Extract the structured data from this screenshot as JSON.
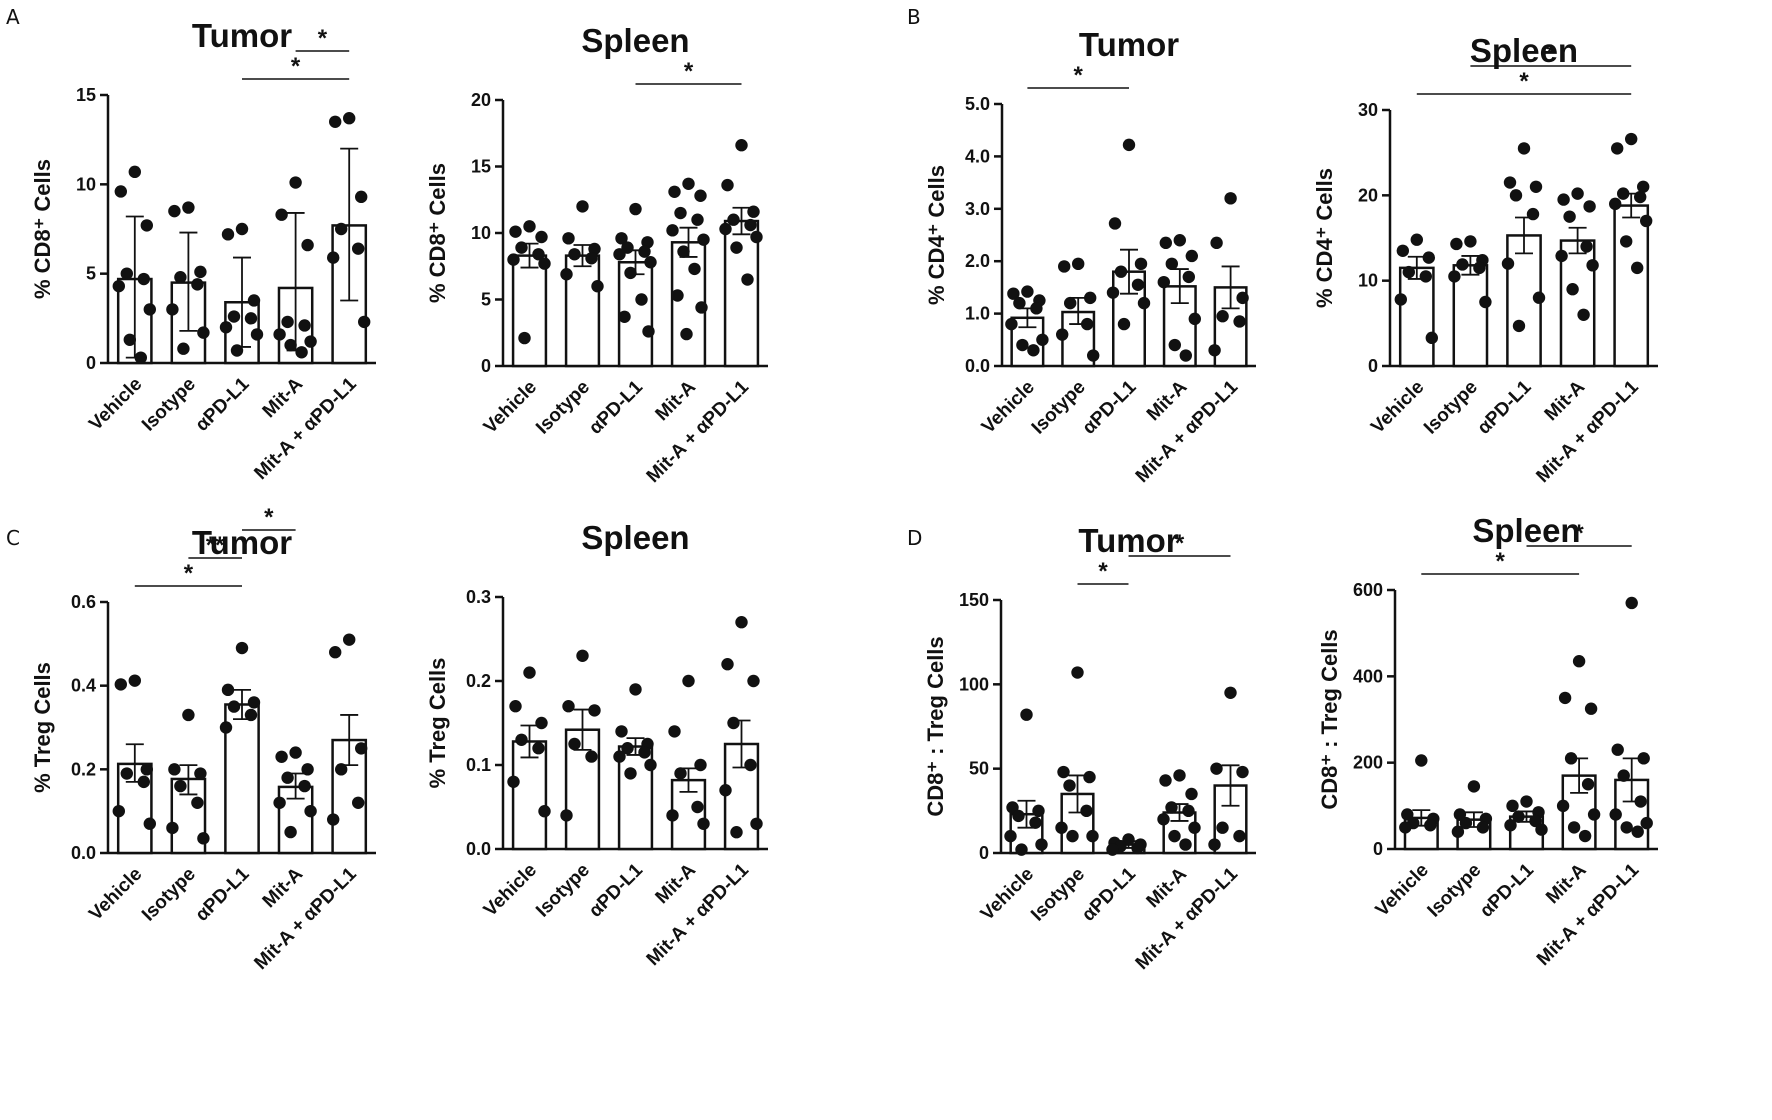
{
  "figure": {
    "panel_letters": [
      "A",
      "B",
      "C",
      "D"
    ],
    "category_labels": {
      "vehicle": "Vehicle",
      "isotype": "Isotype",
      "apdl1": "αPD-L1",
      "mita": "Mit-A",
      "combo": "Mit-A + αPD-L1"
    }
  },
  "chart_data": [
    {
      "type": "bar",
      "panel": "A",
      "title": "Tumor",
      "ylabel": "% CD8⁺ Cells",
      "ylim": [
        0,
        15
      ],
      "yticks": [
        0,
        5,
        10,
        15
      ],
      "ytick_labels": [
        "0",
        "5",
        "10",
        "15"
      ],
      "categories": [
        "Vehicle",
        "Isotype",
        "αPD-L1",
        "Mit-A",
        "Mit-A + αPD-L1"
      ],
      "values": [
        4.7,
        4.5,
        3.4,
        4.2,
        7.7
      ],
      "err_upper": [
        8.2,
        7.3,
        5.9,
        8.4,
        12.0
      ],
      "err_lower": [
        0.3,
        1.8,
        0.9,
        0.7,
        3.5
      ],
      "points": [
        [
          10.7,
          9.6,
          7.7,
          5.0,
          4.7,
          4.3,
          3.0,
          1.3,
          0.3
        ],
        [
          8.7,
          8.5,
          5.1,
          4.8,
          4.4,
          3.0,
          1.7,
          0.8
        ],
        [
          7.5,
          7.2,
          3.5,
          2.6,
          2.5,
          2.0,
          1.6,
          0.7
        ],
        [
          10.1,
          8.3,
          6.6,
          2.3,
          2.1,
          1.6,
          1.2,
          1.0,
          0.6
        ],
        [
          13.7,
          13.5,
          9.3,
          7.5,
          6.4,
          5.9,
          2.3
        ]
      ],
      "significance": [
        {
          "from": 2,
          "to": 4,
          "label": "*"
        },
        {
          "from": 3,
          "to": 4,
          "label": "*"
        }
      ]
    },
    {
      "type": "bar",
      "panel": "",
      "title": "Spleen",
      "ylabel": "% CD8⁺ Cells",
      "ylim": [
        0,
        20
      ],
      "yticks": [
        0,
        5,
        10,
        15,
        20
      ],
      "ytick_labels": [
        "0",
        "5",
        "10",
        "15",
        "20"
      ],
      "categories": [
        "Vehicle",
        "Isotype",
        "αPD-L1",
        "Mit-A",
        "Mit-A + αPD-L1"
      ],
      "values": [
        8.3,
        8.3,
        7.8,
        9.3,
        10.9
      ],
      "err_upper": [
        9.2,
        9.1,
        8.7,
        10.4,
        11.9
      ],
      "err_lower": [
        7.4,
        7.5,
        6.9,
        8.2,
        9.9
      ],
      "points": [
        [
          10.5,
          10.1,
          9.7,
          8.9,
          8.4,
          8.0,
          7.7,
          2.1
        ],
        [
          12.0,
          9.6,
          8.8,
          8.4,
          8.1,
          6.9,
          6.0
        ],
        [
          11.8,
          9.6,
          9.3,
          8.9,
          8.6,
          8.4,
          7.8,
          7.0,
          5.0,
          3.7,
          2.6
        ],
        [
          13.7,
          13.1,
          12.8,
          11.5,
          11.0,
          10.2,
          9.5,
          8.6,
          7.3,
          5.3,
          4.4,
          2.4
        ],
        [
          16.6,
          13.6,
          11.6,
          11.0,
          10.6,
          10.3,
          9.7,
          8.9,
          6.5
        ]
      ],
      "significance": [
        {
          "from": 2,
          "to": 4,
          "label": "*"
        }
      ]
    },
    {
      "type": "bar",
      "panel": "B",
      "title": "Tumor",
      "ylabel": "% CD4⁺ Cells",
      "ylim": [
        0,
        5
      ],
      "yticks": [
        0,
        1,
        2,
        3,
        4,
        5
      ],
      "ytick_labels": [
        "0.0",
        "1.0",
        "2.0",
        "3.0",
        "4.0",
        "5.0"
      ],
      "categories": [
        "Vehicle",
        "Isotype",
        "αPD-L1",
        "Mit-A",
        "Mit-A + αPD-L1"
      ],
      "values": [
        0.92,
        1.03,
        1.8,
        1.52,
        1.5
      ],
      "err_upper": [
        1.1,
        1.3,
        2.22,
        1.85,
        1.9
      ],
      "err_lower": [
        0.74,
        0.8,
        1.38,
        1.2,
        1.1
      ],
      "points": [
        [
          1.42,
          1.38,
          1.25,
          1.2,
          1.1,
          0.8,
          0.5,
          0.4,
          0.3
        ],
        [
          1.95,
          1.9,
          1.3,
          1.2,
          0.8,
          0.6,
          0.2
        ],
        [
          4.22,
          2.72,
          1.95,
          1.8,
          1.55,
          1.4,
          1.2,
          0.8
        ],
        [
          2.4,
          2.35,
          2.1,
          1.95,
          1.7,
          1.6,
          0.9,
          0.4,
          0.2
        ],
        [
          3.2,
          2.35,
          1.3,
          0.95,
          0.85,
          0.3
        ]
      ],
      "significance": [
        {
          "from": 0,
          "to": 2,
          "label": "*"
        }
      ]
    },
    {
      "type": "bar",
      "panel": "",
      "title": "Spleen",
      "ylabel": "% CD4⁺ Cells",
      "ylim": [
        0,
        30
      ],
      "yticks": [
        0,
        10,
        20,
        30
      ],
      "ytick_labels": [
        "0",
        "10",
        "20",
        "30"
      ],
      "categories": [
        "Vehicle",
        "Isotype",
        "αPD-L1",
        "Mit-A",
        "Mit-A + αPD-L1"
      ],
      "values": [
        11.5,
        11.8,
        15.3,
        14.7,
        18.8
      ],
      "err_upper": [
        12.8,
        12.9,
        17.4,
        16.2,
        20.2
      ],
      "err_lower": [
        10.2,
        10.7,
        13.2,
        13.2,
        17.4
      ],
      "points": [
        [
          14.8,
          13.5,
          12.7,
          11.0,
          10.5,
          7.8,
          3.3
        ],
        [
          14.6,
          14.3,
          12.4,
          11.9,
          11.5,
          10.5,
          7.5
        ],
        [
          25.5,
          21.5,
          21.0,
          20.0,
          17.8,
          12.0,
          8.0,
          4.7
        ],
        [
          20.2,
          19.5,
          18.7,
          17.5,
          14.0,
          12.9,
          11.8,
          9.0,
          6.0
        ],
        [
          26.6,
          25.5,
          21.0,
          20.2,
          19.8,
          19.0,
          17.0,
          14.6,
          11.5
        ]
      ],
      "significance": [
        {
          "from": 0,
          "to": 4,
          "label": "*"
        },
        {
          "from": 1,
          "to": 4,
          "label": "*"
        }
      ]
    },
    {
      "type": "bar",
      "panel": "C",
      "title": "Tumor",
      "ylabel": "% Treg Cells",
      "ylim": [
        0,
        0.6
      ],
      "yticks": [
        0,
        0.2,
        0.4,
        0.6
      ],
      "ytick_labels": [
        "0.0",
        "0.2",
        "0.4",
        "0.6"
      ],
      "categories": [
        "Vehicle",
        "Isotype",
        "αPD-L1",
        "Mit-A",
        "Mit-A + αPD-L1"
      ],
      "values": [
        0.213,
        0.177,
        0.355,
        0.158,
        0.27
      ],
      "err_upper": [
        0.26,
        0.21,
        0.39,
        0.19,
        0.33
      ],
      "err_lower": [
        0.17,
        0.14,
        0.32,
        0.13,
        0.21
      ],
      "points": [
        [
          0.412,
          0.403,
          0.2,
          0.19,
          0.17,
          0.1,
          0.07
        ],
        [
          0.33,
          0.2,
          0.19,
          0.16,
          0.12,
          0.06,
          0.035
        ],
        [
          0.49,
          0.39,
          0.36,
          0.35,
          0.33,
          0.3
        ],
        [
          0.24,
          0.23,
          0.2,
          0.18,
          0.16,
          0.12,
          0.1,
          0.05
        ],
        [
          0.51,
          0.48,
          0.25,
          0.2,
          0.12,
          0.08
        ]
      ],
      "significance": [
        {
          "from": 0,
          "to": 2,
          "label": "*"
        },
        {
          "from": 1,
          "to": 2,
          "label": "**"
        },
        {
          "from": 2,
          "to": 3,
          "label": "*"
        }
      ]
    },
    {
      "type": "bar",
      "panel": "",
      "title": "Spleen",
      "ylabel": "% Treg Cells",
      "ylim": [
        0,
        0.3
      ],
      "yticks": [
        0,
        0.1,
        0.2,
        0.3
      ],
      "ytick_labels": [
        "0.0",
        "0.1",
        "0.2",
        "0.3"
      ],
      "categories": [
        "Vehicle",
        "Isotype",
        "αPD-L1",
        "Mit-A",
        "Mit-A + αPD-L1"
      ],
      "values": [
        0.128,
        0.142,
        0.122,
        0.082,
        0.125
      ],
      "err_upper": [
        0.147,
        0.166,
        0.132,
        0.096,
        0.153
      ],
      "err_lower": [
        0.109,
        0.118,
        0.112,
        0.068,
        0.097
      ],
      "points": [
        [
          0.21,
          0.17,
          0.15,
          0.13,
          0.12,
          0.08,
          0.045
        ],
        [
          0.23,
          0.17,
          0.165,
          0.125,
          0.11,
          0.04
        ],
        [
          0.19,
          0.14,
          0.125,
          0.12,
          0.115,
          0.11,
          0.1,
          0.09
        ],
        [
          0.2,
          0.14,
          0.1,
          0.09,
          0.05,
          0.04,
          0.03
        ],
        [
          0.27,
          0.22,
          0.2,
          0.15,
          0.1,
          0.07,
          0.03,
          0.02
        ]
      ],
      "significance": []
    },
    {
      "type": "bar",
      "panel": "D",
      "title": "Tumor",
      "ylabel": "CD8⁺ : Treg Cells",
      "ylim": [
        0,
        150
      ],
      "yticks": [
        0,
        50,
        100,
        150
      ],
      "ytick_labels": [
        "0",
        "50",
        "100",
        "150"
      ],
      "categories": [
        "Vehicle",
        "Isotype",
        "αPD-L1",
        "Mit-A",
        "Mit-A + αPD-L1"
      ],
      "values": [
        23,
        35,
        5,
        24,
        40
      ],
      "err_upper": [
        31,
        46,
        7,
        29,
        52
      ],
      "err_lower": [
        15,
        24,
        3,
        19,
        28
      ],
      "points": [
        [
          82,
          27,
          25,
          22,
          18,
          10,
          5,
          2
        ],
        [
          107,
          48,
          45,
          40,
          25,
          15,
          10,
          10
        ],
        [
          8,
          6,
          5,
          4,
          3,
          2
        ],
        [
          46,
          43,
          35,
          27,
          25,
          20,
          15,
          10,
          5
        ],
        [
          95,
          50,
          48,
          15,
          10,
          5
        ]
      ],
      "significance": [
        {
          "from": 1,
          "to": 2,
          "label": "*"
        },
        {
          "from": 2,
          "to": 4,
          "label": "*"
        }
      ]
    },
    {
      "type": "bar",
      "panel": "",
      "title": "Spleen",
      "ylabel": "CD8⁺ : Treg Cells",
      "ylim": [
        0,
        600
      ],
      "yticks": [
        0,
        200,
        400,
        600
      ],
      "ytick_labels": [
        "0",
        "200",
        "400",
        "600"
      ],
      "categories": [
        "Vehicle",
        "Isotype",
        "αPD-L1",
        "Mit-A",
        "Mit-A + αPD-L1"
      ],
      "values": [
        72,
        68,
        75,
        170,
        160
      ],
      "err_upper": [
        90,
        85,
        87,
        210,
        210
      ],
      "err_lower": [
        54,
        51,
        63,
        130,
        110
      ],
      "points": [
        [
          205,
          80,
          70,
          60,
          55,
          50
        ],
        [
          145,
          80,
          70,
          60,
          50,
          40
        ],
        [
          110,
          100,
          85,
          75,
          65,
          55,
          45
        ],
        [
          435,
          350,
          325,
          210,
          150,
          100,
          80,
          50,
          30
        ],
        [
          570,
          230,
          210,
          170,
          110,
          80,
          60,
          50,
          40
        ]
      ],
      "significance": [
        {
          "from": 0,
          "to": 3,
          "label": "*"
        },
        {
          "from": 2,
          "to": 4,
          "label": "*"
        }
      ]
    }
  ]
}
